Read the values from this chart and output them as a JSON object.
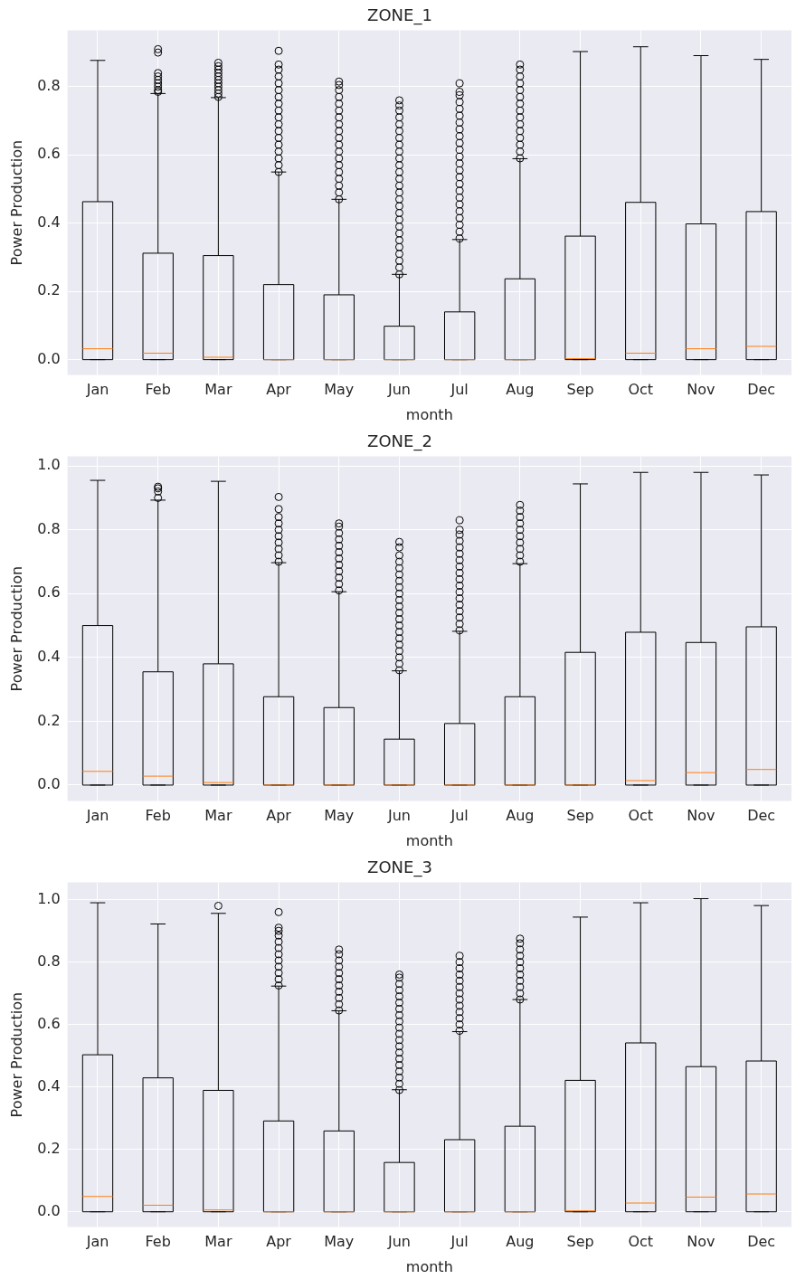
{
  "chart_data": [
    {
      "type": "box",
      "title": "ZONE_1",
      "xlabel": "month",
      "ylabel": "Power Production",
      "categories": [
        "Jan",
        "Feb",
        "Mar",
        "Apr",
        "May",
        "Jun",
        "Jul",
        "Aug",
        "Sep",
        "Oct",
        "Nov",
        "Dec"
      ],
      "ylim": [
        -0.045,
        0.965
      ],
      "yticks": [
        {
          "value": 0,
          "label": "0.0"
        },
        {
          "value": 0.2,
          "label": "0.2"
        },
        {
          "value": 0.4,
          "label": "0.4"
        },
        {
          "value": 0.6,
          "label": "0.6"
        },
        {
          "value": 0.8,
          "label": "0.8"
        }
      ],
      "grid": true,
      "boxes": [
        {
          "low": 0,
          "q1": 0,
          "median": 0.032,
          "q3": 0.463,
          "high": 0.877
        },
        {
          "low": 0,
          "q1": 0,
          "median": 0.019,
          "q3": 0.312,
          "high": 0.78,
          "outliers": [
            0.785,
            0.79,
            0.8,
            0.81,
            0.82,
            0.83,
            0.84,
            0.9,
            0.91
          ]
        },
        {
          "low": 0,
          "q1": 0,
          "median": 0.007,
          "q3": 0.305,
          "high": 0.768,
          "outliers": [
            0.77,
            0.78,
            0.79,
            0.8,
            0.81,
            0.82,
            0.83,
            0.84,
            0.85,
            0.86,
            0.87
          ]
        },
        {
          "low": 0,
          "q1": 0,
          "median": 0,
          "q3": 0.22,
          "high": 0.55,
          "outliers": [
            0.55,
            0.57,
            0.59,
            0.61,
            0.63,
            0.65,
            0.67,
            0.69,
            0.71,
            0.73,
            0.75,
            0.77,
            0.79,
            0.81,
            0.83,
            0.85,
            0.865,
            0.905
          ]
        },
        {
          "low": 0,
          "q1": 0,
          "median": 0,
          "q3": 0.19,
          "high": 0.47,
          "outliers": [
            0.47,
            0.49,
            0.51,
            0.53,
            0.55,
            0.57,
            0.59,
            0.61,
            0.63,
            0.65,
            0.67,
            0.69,
            0.71,
            0.73,
            0.75,
            0.77,
            0.79,
            0.805,
            0.815
          ]
        },
        {
          "low": 0,
          "q1": 0,
          "median": 0,
          "q3": 0.098,
          "high": 0.25,
          "outliers": [
            0.25,
            0.27,
            0.29,
            0.31,
            0.33,
            0.35,
            0.37,
            0.39,
            0.41,
            0.43,
            0.45,
            0.47,
            0.49,
            0.51,
            0.53,
            0.55,
            0.57,
            0.59,
            0.61,
            0.63,
            0.65,
            0.67,
            0.69,
            0.71,
            0.73,
            0.745,
            0.76
          ]
        },
        {
          "low": 0,
          "q1": 0,
          "median": 0,
          "q3": 0.14,
          "high": 0.352,
          "outliers": [
            0.355,
            0.375,
            0.395,
            0.415,
            0.435,
            0.455,
            0.475,
            0.495,
            0.515,
            0.535,
            0.555,
            0.575,
            0.595,
            0.615,
            0.635,
            0.655,
            0.675,
            0.695,
            0.715,
            0.735,
            0.755,
            0.775,
            0.785,
            0.81
          ]
        },
        {
          "low": 0,
          "q1": 0,
          "median": 0,
          "q3": 0.237,
          "high": 0.589,
          "outliers": [
            0.59,
            0.61,
            0.63,
            0.65,
            0.67,
            0.69,
            0.71,
            0.73,
            0.75,
            0.77,
            0.79,
            0.81,
            0.83,
            0.85,
            0.865
          ]
        },
        {
          "low": 0,
          "q1": 0,
          "median": 0.003,
          "q3": 0.362,
          "high": 0.903
        },
        {
          "low": 0,
          "q1": 0,
          "median": 0.019,
          "q3": 0.461,
          "high": 0.917
        },
        {
          "low": 0,
          "q1": 0,
          "median": 0.032,
          "q3": 0.398,
          "high": 0.891
        },
        {
          "low": 0,
          "q1": 0,
          "median": 0.039,
          "q3": 0.434,
          "high": 0.88
        }
      ]
    },
    {
      "type": "box",
      "title": "ZONE_2",
      "xlabel": "month",
      "ylabel": "Power Production",
      "categories": [
        "Jan",
        "Feb",
        "Mar",
        "Apr",
        "May",
        "Jun",
        "Jul",
        "Aug",
        "Sep",
        "Oct",
        "Nov",
        "Dec"
      ],
      "ylim": [
        -0.05,
        1.03
      ],
      "yticks": [
        {
          "value": 0,
          "label": "0.0"
        },
        {
          "value": 0.2,
          "label": "0.2"
        },
        {
          "value": 0.4,
          "label": "0.4"
        },
        {
          "value": 0.6,
          "label": "0.6"
        },
        {
          "value": 0.8,
          "label": "0.8"
        },
        {
          "value": 1,
          "label": "1.0"
        }
      ],
      "grid": true,
      "boxes": [
        {
          "low": 0,
          "q1": 0,
          "median": 0.043,
          "q3": 0.5,
          "high": 0.955
        },
        {
          "low": 0,
          "q1": 0,
          "median": 0.028,
          "q3": 0.355,
          "high": 0.893,
          "outliers": [
            0.9,
            0.92,
            0.93,
            0.935
          ]
        },
        {
          "low": 0,
          "q1": 0,
          "median": 0.008,
          "q3": 0.38,
          "high": 0.952
        },
        {
          "low": 0,
          "q1": 0,
          "median": 0,
          "q3": 0.277,
          "high": 0.697,
          "outliers": [
            0.7,
            0.72,
            0.74,
            0.76,
            0.78,
            0.8,
            0.82,
            0.84,
            0.865,
            0.903
          ]
        },
        {
          "low": 0,
          "q1": 0,
          "median": 0,
          "q3": 0.243,
          "high": 0.606,
          "outliers": [
            0.61,
            0.63,
            0.65,
            0.67,
            0.69,
            0.71,
            0.73,
            0.75,
            0.77,
            0.79,
            0.81,
            0.82
          ]
        },
        {
          "low": 0,
          "q1": 0,
          "median": 0,
          "q3": 0.144,
          "high": 0.358,
          "outliers": [
            0.36,
            0.38,
            0.4,
            0.42,
            0.44,
            0.46,
            0.48,
            0.5,
            0.52,
            0.54,
            0.56,
            0.58,
            0.6,
            0.62,
            0.64,
            0.66,
            0.68,
            0.7,
            0.72,
            0.745,
            0.762
          ]
        },
        {
          "low": 0,
          "q1": 0,
          "median": 0,
          "q3": 0.193,
          "high": 0.482,
          "outliers": [
            0.485,
            0.505,
            0.525,
            0.545,
            0.565,
            0.585,
            0.605,
            0.625,
            0.645,
            0.665,
            0.685,
            0.705,
            0.725,
            0.745,
            0.765,
            0.785,
            0.8,
            0.83
          ]
        },
        {
          "low": 0,
          "q1": 0,
          "median": 0,
          "q3": 0.277,
          "high": 0.694,
          "outliers": [
            0.7,
            0.72,
            0.74,
            0.76,
            0.78,
            0.8,
            0.82,
            0.84,
            0.86,
            0.878
          ]
        },
        {
          "low": 0,
          "q1": 0,
          "median": 0,
          "q3": 0.416,
          "high": 0.944
        },
        {
          "low": 0,
          "q1": 0,
          "median": 0.014,
          "q3": 0.479,
          "high": 0.98
        },
        {
          "low": 0,
          "q1": 0,
          "median": 0.039,
          "q3": 0.447,
          "high": 0.98
        },
        {
          "low": 0,
          "q1": 0,
          "median": 0.049,
          "q3": 0.496,
          "high": 0.972
        }
      ]
    },
    {
      "type": "box",
      "title": "ZONE_3",
      "xlabel": "month",
      "ylabel": "Power Production",
      "categories": [
        "Jan",
        "Feb",
        "Mar",
        "Apr",
        "May",
        "Jun",
        "Jul",
        "Aug",
        "Sep",
        "Oct",
        "Nov",
        "Dec"
      ],
      "ylim": [
        -0.049,
        1.055
      ],
      "yticks": [
        {
          "value": 0,
          "label": "0.0"
        },
        {
          "value": 0.2,
          "label": "0.2"
        },
        {
          "value": 0.4,
          "label": "0.4"
        },
        {
          "value": 0.6,
          "label": "0.6"
        },
        {
          "value": 0.8,
          "label": "0.8"
        },
        {
          "value": 1,
          "label": "1.0"
        }
      ],
      "grid": true,
      "boxes": [
        {
          "low": 0,
          "q1": 0,
          "median": 0.049,
          "q3": 0.503,
          "high": 0.99
        },
        {
          "low": 0,
          "q1": 0,
          "median": 0.021,
          "q3": 0.429,
          "high": 0.922
        },
        {
          "low": 0,
          "q1": 0,
          "median": 0.006,
          "q3": 0.389,
          "high": 0.956,
          "outliers": [
            0.98
          ]
        },
        {
          "low": 0,
          "q1": 0,
          "median": 0,
          "q3": 0.291,
          "high": 0.723,
          "outliers": [
            0.725,
            0.745,
            0.765,
            0.785,
            0.805,
            0.825,
            0.845,
            0.865,
            0.885,
            0.9,
            0.91,
            0.96
          ]
        },
        {
          "low": 0,
          "q1": 0,
          "median": 0,
          "q3": 0.259,
          "high": 0.644,
          "outliers": [
            0.645,
            0.665,
            0.685,
            0.705,
            0.725,
            0.745,
            0.765,
            0.785,
            0.805,
            0.825,
            0.84
          ]
        },
        {
          "low": 0,
          "q1": 0,
          "median": 0,
          "q3": 0.158,
          "high": 0.391,
          "outliers": [
            0.39,
            0.41,
            0.43,
            0.45,
            0.47,
            0.49,
            0.51,
            0.53,
            0.55,
            0.57,
            0.59,
            0.61,
            0.63,
            0.65,
            0.67,
            0.69,
            0.71,
            0.73,
            0.75,
            0.76
          ]
        },
        {
          "low": 0,
          "q1": 0,
          "median": 0,
          "q3": 0.231,
          "high": 0.577,
          "outliers": [
            0.58,
            0.6,
            0.62,
            0.64,
            0.66,
            0.68,
            0.7,
            0.72,
            0.74,
            0.76,
            0.78,
            0.8,
            0.82
          ]
        },
        {
          "low": 0,
          "q1": 0,
          "median": 0,
          "q3": 0.274,
          "high": 0.68,
          "outliers": [
            0.68,
            0.7,
            0.72,
            0.74,
            0.76,
            0.78,
            0.8,
            0.82,
            0.84,
            0.86,
            0.875
          ]
        },
        {
          "low": 0,
          "q1": 0,
          "median": 0.003,
          "q3": 0.421,
          "high": 0.944
        },
        {
          "low": 0,
          "q1": 0,
          "median": 0.028,
          "q3": 0.541,
          "high": 0.99
        },
        {
          "low": 0,
          "q1": 0,
          "median": 0.047,
          "q3": 0.465,
          "high": 1.003
        },
        {
          "low": 0,
          "q1": 0,
          "median": 0.057,
          "q3": 0.483,
          "high": 0.981
        }
      ]
    }
  ]
}
